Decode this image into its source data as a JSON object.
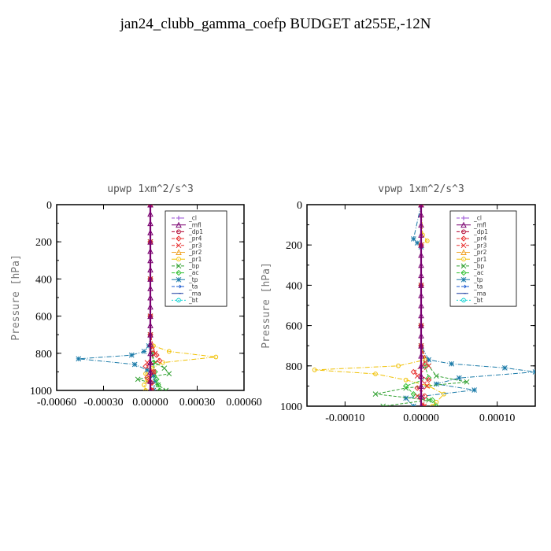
{
  "title": "jan24_clubb_gamma_coefp  BUDGET at255E,-12N",
  "legend_entries": [
    {
      "name": "_cl",
      "color": "#9a4dd6",
      "marker": "plus"
    },
    {
      "name": "_mfl",
      "color": "#7a0070",
      "marker": "tri"
    },
    {
      "name": "_dp1",
      "color": "#b0002e",
      "marker": "circle"
    },
    {
      "name": "_pr4",
      "color": "#e83030",
      "marker": "diamond"
    },
    {
      "name": "_pr3",
      "color": "#e83030",
      "marker": "x"
    },
    {
      "name": "_pr2",
      "color": "#f0a020",
      "marker": "tri"
    },
    {
      "name": "_pr1",
      "color": "#f0c000",
      "marker": "circle"
    },
    {
      "name": "_bp",
      "color": "#30a030",
      "marker": "x"
    },
    {
      "name": "_ac",
      "color": "#30c030",
      "marker": "diamond"
    },
    {
      "name": "_tp",
      "color": "#1a7aa8",
      "marker": "star"
    },
    {
      "name": "_ta",
      "color": "#1a5ad0",
      "marker": "arrow"
    },
    {
      "name": "_ma",
      "color": "#1a3aa0",
      "marker": "dash"
    },
    {
      "name": "_bt",
      "color": "#00d0d0",
      "marker": "circle"
    }
  ],
  "chart_data": [
    {
      "type": "line",
      "title": "upwp   1xm^2/s^3",
      "ylabel": "Pressure [hPa]",
      "xlim": [
        -0.0006,
        0.0006
      ],
      "ylim": [
        1000,
        0
      ],
      "xticks": [
        "-0.00060",
        "-0.00030",
        "0.00000",
        "0.00030",
        "0.00060"
      ],
      "xtick_values": [
        -0.0006,
        -0.0003,
        0.0,
        0.0003,
        0.0006
      ],
      "yticks": [
        0,
        200,
        400,
        600,
        800,
        1000
      ],
      "legend_position": "top-right",
      "series": [
        {
          "name": "_pr1",
          "y": [
            0,
            200,
            400,
            600,
            700,
            760,
            790,
            820,
            850,
            880,
            910,
            940,
            970,
            1000
          ],
          "x": [
            0,
            0,
            0,
            0,
            0,
            2e-05,
            0.00012,
            0.00042,
            8e-05,
            1e-05,
            -3e-05,
            -2e-05,
            -4e-05,
            -3e-05
          ]
        },
        {
          "name": "_tp",
          "y": [
            0,
            200,
            400,
            600,
            700,
            760,
            790,
            810,
            830,
            860,
            890,
            920,
            950,
            1000
          ],
          "x": [
            0,
            0,
            0,
            0,
            0,
            -1e-05,
            -4e-05,
            -0.00012,
            -0.00046,
            -0.0001,
            -2e-05,
            2e-05,
            3e-05,
            2e-05
          ]
        },
        {
          "name": "_bp",
          "y": [
            0,
            200,
            400,
            600,
            700,
            800,
            850,
            880,
            910,
            940,
            970,
            1000
          ],
          "x": [
            0,
            0,
            0,
            0,
            0,
            1e-05,
            3e-05,
            9e-05,
            0.00012,
            -8e-05,
            5e-05,
            0.0001
          ]
        },
        {
          "name": "_ac",
          "y": [
            0,
            200,
            400,
            600,
            700,
            800,
            850,
            900,
            940,
            970,
            1000
          ],
          "x": [
            0,
            0,
            0,
            0,
            0,
            1e-05,
            2e-05,
            3e-05,
            4e-05,
            5e-05,
            6e-05
          ]
        },
        {
          "name": "_pr4",
          "y": [
            0,
            200,
            400,
            600,
            700,
            780,
            810,
            840,
            870,
            900,
            930,
            960,
            1000
          ],
          "x": [
            0,
            0,
            0,
            0,
            0,
            1e-05,
            4e-05,
            6e-05,
            -3e-05,
            2e-05,
            -2e-05,
            1e-05,
            1e-05
          ]
        },
        {
          "name": "_pr3",
          "y": [
            0,
            200,
            400,
            600,
            700,
            800,
            850,
            900,
            950,
            1000
          ],
          "x": [
            0,
            0,
            0,
            0,
            0,
            3e-05,
            -2e-05,
            2e-05,
            -1e-05,
            1e-05
          ]
        },
        {
          "name": "_mfl",
          "y": [
            0,
            50,
            100,
            150,
            200,
            250,
            300,
            350,
            400,
            450,
            500,
            550,
            600,
            650,
            700,
            750,
            800,
            850,
            900,
            950,
            1000
          ],
          "x": [
            0,
            0,
            0,
            0,
            0,
            0,
            0,
            0,
            0,
            0,
            0,
            0,
            0,
            0,
            0,
            0,
            0,
            0,
            0,
            0,
            0
          ]
        }
      ]
    },
    {
      "type": "line",
      "title": "vpwp   1xm^2/s^3",
      "ylabel": "Pressure [hPa]",
      "xlim": [
        -0.00015,
        0.00015
      ],
      "ylim": [
        1000,
        0
      ],
      "xticks": [
        "-0.00010",
        "0.00000",
        "0.00010"
      ],
      "xtick_values": [
        -0.0001,
        0.0,
        0.0001
      ],
      "yticks": [
        0,
        200,
        400,
        600,
        800,
        1000
      ],
      "legend_position": "top-right",
      "series": [
        {
          "name": "_pr1",
          "y": [
            0,
            150,
            180,
            200,
            400,
            600,
            700,
            770,
            800,
            820,
            840,
            870,
            900,
            940,
            980,
            1000
          ],
          "x": [
            0,
            2e-06,
            8e-06,
            0,
            0,
            0,
            0,
            5e-06,
            -3e-05,
            -0.00014,
            -6e-05,
            -2e-05,
            1e-05,
            3e-05,
            2e-05,
            1.5e-05
          ]
        },
        {
          "name": "_tp",
          "y": [
            0,
            170,
            190,
            210,
            400,
            600,
            700,
            770,
            790,
            810,
            830,
            860,
            890,
            920,
            960,
            1000
          ],
          "x": [
            0,
            -1e-05,
            -5e-06,
            0,
            0,
            0,
            0,
            1e-05,
            4e-05,
            0.00011,
            0.00015,
            5e-05,
            2e-05,
            7e-05,
            -2e-05,
            -1e-05
          ]
        },
        {
          "name": "_bp",
          "y": [
            0,
            200,
            400,
            600,
            700,
            800,
            850,
            880,
            910,
            940,
            970,
            1000
          ],
          "x": [
            0,
            0,
            0,
            0,
            0,
            1e-05,
            2e-05,
            6e-05,
            -2e-05,
            -6e-05,
            1e-05,
            -5e-05
          ]
        },
        {
          "name": "_ac",
          "y": [
            0,
            200,
            400,
            600,
            700,
            800,
            860,
            900,
            940,
            970,
            1000
          ],
          "x": [
            0,
            0,
            0,
            0,
            0,
            5e-06,
            1e-05,
            -2e-05,
            -1e-05,
            1.5e-05,
            2e-05
          ]
        },
        {
          "name": "_pr4",
          "y": [
            0,
            200,
            400,
            600,
            700,
            790,
            830,
            870,
            910,
            950,
            1000
          ],
          "x": [
            0,
            0,
            0,
            0,
            0,
            5e-06,
            -1e-05,
            1e-05,
            -5e-06,
            5e-06,
            3e-06
          ]
        },
        {
          "name": "_pr3",
          "y": [
            0,
            200,
            400,
            600,
            700,
            800,
            850,
            900,
            950,
            1000
          ],
          "x": [
            0,
            0,
            0,
            0,
            0,
            1e-05,
            -5e-06,
            8e-06,
            -5e-06,
            4e-06
          ]
        },
        {
          "name": "_mfl",
          "y": [
            0,
            50,
            100,
            150,
            200,
            250,
            300,
            350,
            400,
            450,
            500,
            550,
            600,
            650,
            700,
            750,
            800,
            850,
            900,
            950,
            1000
          ],
          "x": [
            0,
            0,
            0,
            0,
            0,
            0,
            0,
            0,
            0,
            0,
            0,
            0,
            0,
            0,
            0,
            0,
            0,
            0,
            0,
            0,
            0
          ]
        }
      ]
    }
  ]
}
